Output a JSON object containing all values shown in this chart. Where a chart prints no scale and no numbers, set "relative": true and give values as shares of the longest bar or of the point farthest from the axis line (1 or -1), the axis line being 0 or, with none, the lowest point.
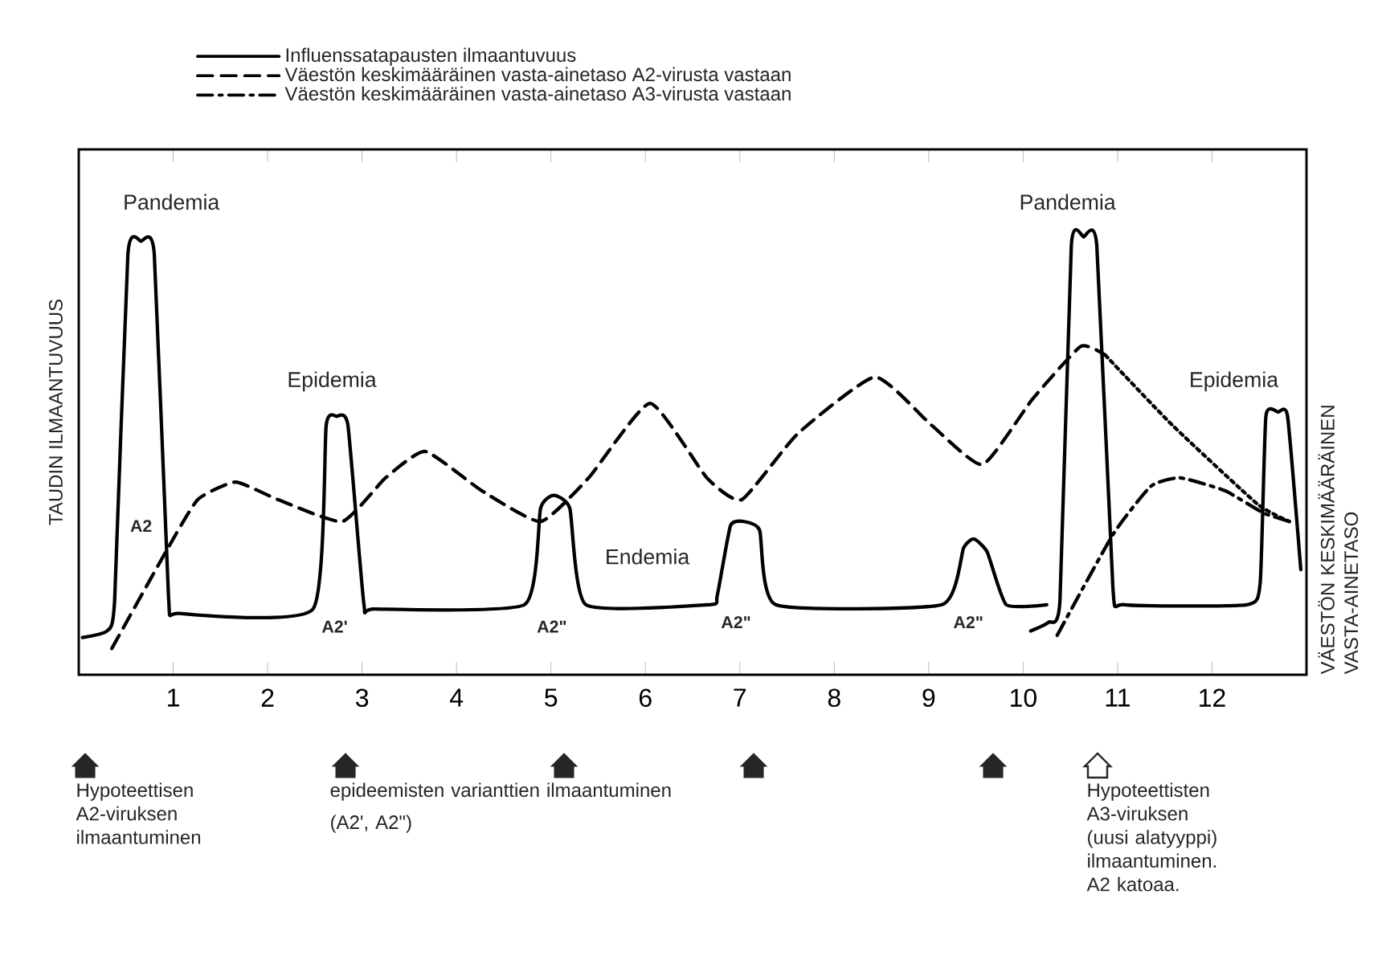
{
  "chart_data": {
    "type": "line",
    "relative": true,
    "ylabel": "TAUDIN ILMAANTUVUUS",
    "y2label": "VÄESTÖN KESKIMÄÄRÄINEN VASTA-AINETASO",
    "xlim": [
      0,
      13
    ],
    "xticks": [
      1,
      2,
      3,
      4,
      5,
      6,
      7,
      8,
      9,
      10,
      11,
      12
    ],
    "legend": "top left",
    "grid": false,
    "marker": "none",
    "series": [
      {
        "name": "Influenssatapausten ilmaantuvuus",
        "color": "#000000",
        "line_style": "solid",
        "x": [
          0.04,
          0.3,
          0.38,
          0.52,
          0.66,
          0.8,
          0.95,
          1.06,
          2.48,
          2.62,
          2.73,
          2.85,
          3.02,
          3.13,
          4.72,
          4.89,
          5.03,
          5.2,
          5.37,
          6.68,
          6.76,
          6.9,
          7.04,
          7.21,
          7.38,
          9.14,
          9.37,
          9.48,
          9.62,
          9.82,
          10.25,
          10.16,
          10.08,
          10.27,
          10.39,
          10.51,
          10.64,
          10.78,
          10.95,
          11.07,
          12.37,
          12.51,
          12.57,
          12.7,
          12.8,
          12.94
        ],
        "values": [
          0.085,
          0.1,
          0.17,
          0.96,
          0.99,
          0.96,
          0.18,
          0.14,
          0.15,
          0.57,
          0.59,
          0.57,
          0.16,
          0.15,
          0.16,
          0.38,
          0.41,
          0.38,
          0.16,
          0.16,
          0.18,
          0.34,
          0.35,
          0.33,
          0.16,
          0.16,
          0.29,
          0.31,
          0.28,
          0.16,
          0.16,
          null,
          0.1,
          0.12,
          0.17,
          0.98,
          1.0,
          0.98,
          0.2,
          0.16,
          0.16,
          0.21,
          0.59,
          0.6,
          0.59,
          0.24
        ]
      },
      {
        "name": "Väestön keskimääräinen vasta-ainetaso A2-virusta vastaan",
        "color": "#000000",
        "line_style": "dashed",
        "x": [
          0.35,
          0.92,
          1.26,
          1.66,
          2.11,
          2.79,
          3.25,
          3.67,
          4.27,
          4.89,
          5.4,
          6.05,
          6.65,
          7.02,
          7.61,
          8.43,
          9.03,
          9.57,
          10.1,
          10.61,
          10.87
        ],
        "values": [
          0.06,
          0.28,
          0.4,
          0.44,
          0.4,
          0.35,
          0.45,
          0.51,
          0.42,
          0.35,
          0.45,
          0.62,
          0.45,
          0.4,
          0.55,
          0.68,
          0.57,
          0.48,
          0.63,
          0.75,
          0.73
        ]
      },
      {
        "color": "#000000",
        "line_style": "dotted",
        "x": [
          10.87,
          11.58,
          12.48,
          12.82
        ],
        "values": [
          0.73,
          0.57,
          0.39,
          0.35
        ]
      },
      {
        "name": "Väestön keskimääräinen vasta-ainetaso A3-virusta vastaan",
        "color": "#000000",
        "line_style": "dashdot",
        "x": [
          10.36,
          10.95,
          11.35,
          11.66,
          12.14,
          12.54,
          12.82
        ],
        "values": [
          0.09,
          0.32,
          0.43,
          0.45,
          0.42,
          0.37,
          0.35
        ]
      }
    ],
    "annotations": [
      "Pandemia",
      "A2",
      "Epidemia",
      "A2'",
      "A2\"",
      "Endemia",
      "A2\"",
      "A2\"",
      "Pandemia",
      "Epidemia",
      "Hypoteettisen A2-viruksen ilmaantuminen",
      "epideemisten varianttien ilmaantuminen",
      "(A2', A2\")",
      "Hypoteettisten A3-viruksen (uusi alatyyppi) ilmaantuminen. A2 katoaa."
    ]
  }
}
